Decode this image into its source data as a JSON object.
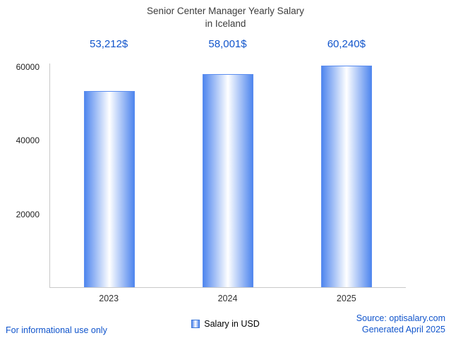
{
  "header": {
    "title_line1": "Senior Center Manager Yearly Salary",
    "title_line2": "in Iceland"
  },
  "chart_data": {
    "type": "bar",
    "title": "Senior Center Manager Yearly Salary in Iceland",
    "categories": [
      "2023",
      "2024",
      "2025"
    ],
    "values": [
      53212,
      58001,
      60240
    ],
    "value_labels": [
      "53,212$",
      "58,001$",
      "60,240$"
    ],
    "series": [
      {
        "name": "Salary in USD",
        "values": [
          53212,
          58001,
          60240
        ]
      }
    ],
    "xlabel": "",
    "ylabel": "",
    "ylim": [
      0,
      61000
    ],
    "tick_values": [
      20000,
      40000,
      60000
    ],
    "tick_labels": [
      "20000",
      "40000",
      "60000"
    ],
    "grid": false,
    "legend_position": "bottom",
    "colors": {
      "bar_edge": "#4f86ee",
      "bar_center": "#ffffff",
      "accent_text": "#1155cc",
      "axis": "#c9c9c9"
    }
  },
  "legend": {
    "label": "Salary in USD"
  },
  "footer": {
    "disclaimer": "For informational use only",
    "source": "Source: optisalary.com",
    "generated": "Generated April 2025"
  }
}
